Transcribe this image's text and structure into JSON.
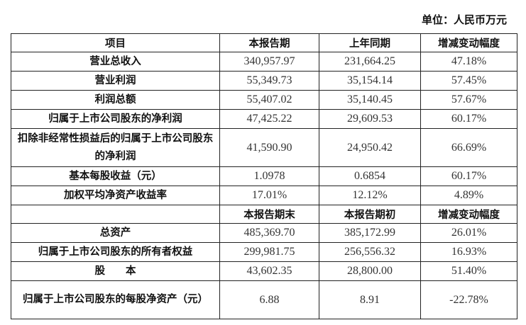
{
  "unit_label": "单位：人民币万元",
  "header": [
    "项目",
    "本报告期",
    "上年同期",
    "增减变动幅度"
  ],
  "rows": [
    {
      "label": "营业总收入",
      "current": "340,957.97",
      "prior": "231,664.25",
      "change": "47.18%"
    },
    {
      "label": "营业利润",
      "current": "55,349.73",
      "prior": "35,154.14",
      "change": "57.45%"
    },
    {
      "label": "利润总额",
      "current": "55,407.02",
      "prior": "35,140.45",
      "change": "57.67%"
    },
    {
      "label": "归属于上市公司股东的净利润",
      "current": "47,425.22",
      "prior": "29,609.53",
      "change": "60.17%"
    },
    {
      "label": "扣除非经常性损益后的归属于上市公司股东的净利润",
      "current": "41,590.90",
      "prior": "24,950.42",
      "change": "66.69%"
    },
    {
      "label": "基本每股收益（元）",
      "current": "1.0978",
      "prior": "0.6854",
      "change": "60.17%"
    },
    {
      "label": "加权平均净资产收益率",
      "current": "17.01%",
      "prior": "12.12%",
      "change": "4.89%"
    }
  ],
  "header2": [
    "",
    "本报告期末",
    "本报告期初",
    "增减变动幅度"
  ],
  "rows2": [
    {
      "label": "总资产",
      "current": "485,369.70",
      "prior": "385,172.99",
      "change": "26.01%"
    },
    {
      "label": "归属于上市公司股东的所有者权益",
      "current": "299,981.75",
      "prior": "256,556.32",
      "change": "16.93%"
    },
    {
      "label": "股　　本",
      "current": "43,602.35",
      "prior": "28,800.00",
      "change": "51.40%"
    },
    {
      "label": "归属于上市公司股东的每股净资产（元）",
      "current": "6.88",
      "prior": "8.91",
      "change": "-22.78%"
    }
  ]
}
